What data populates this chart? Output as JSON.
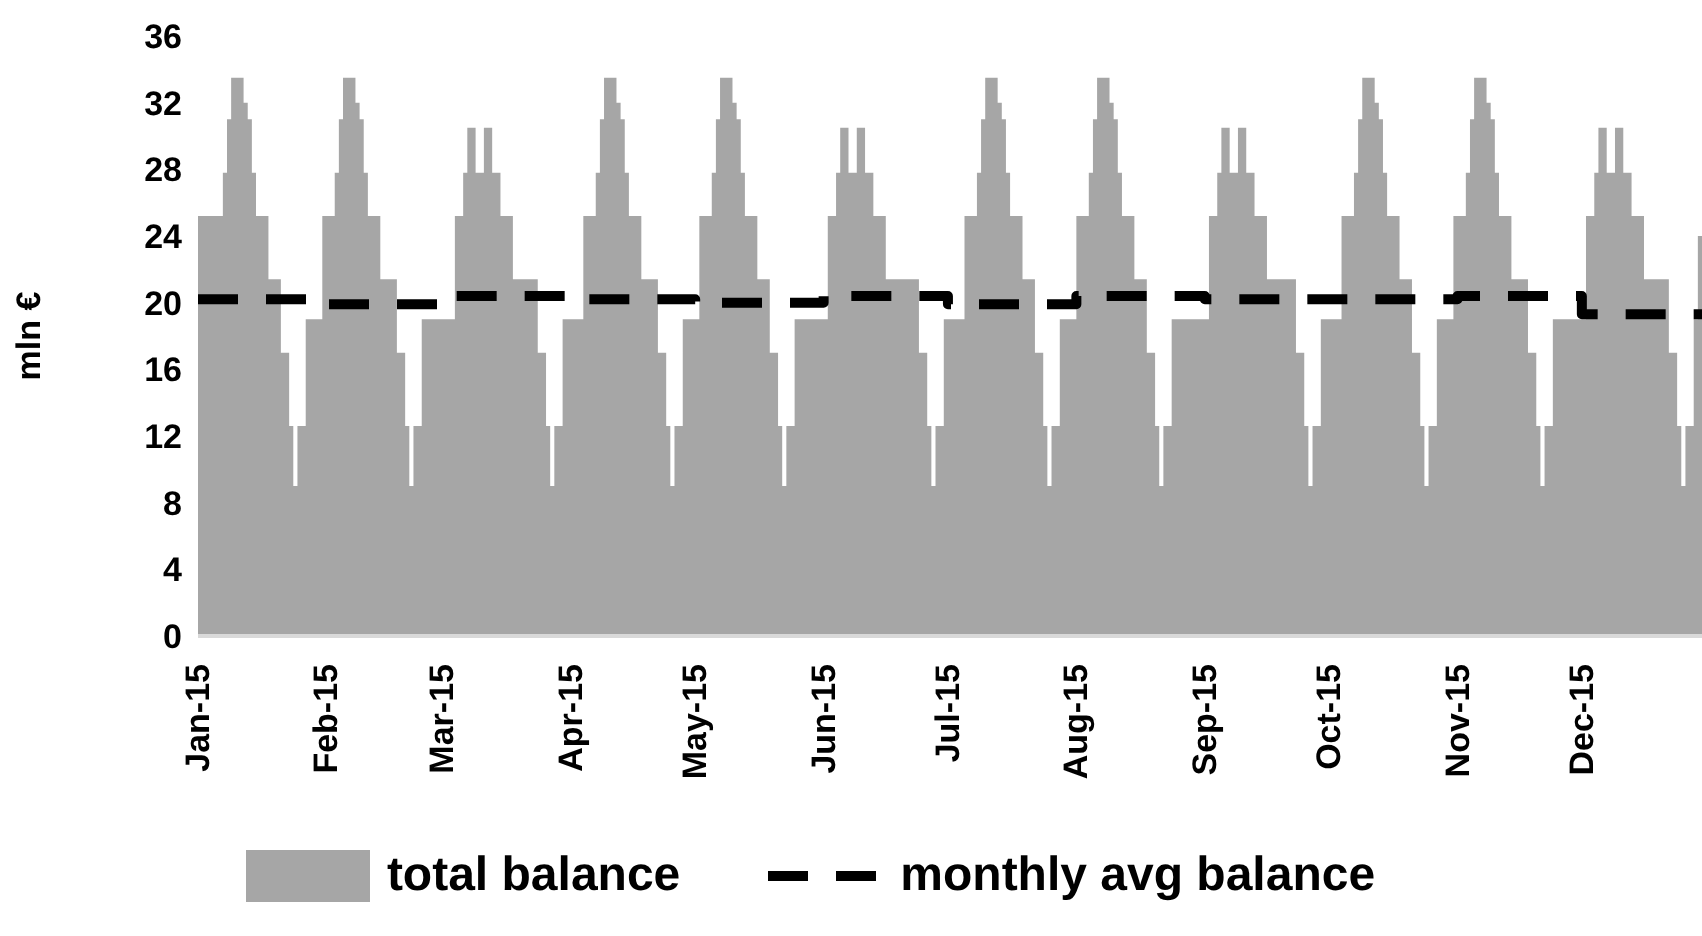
{
  "chart_data": {
    "type": "area",
    "ylabel": "mln €",
    "xlim": [
      "2015-01-01",
      "2015-12-30"
    ],
    "xticks": [
      {
        "value": "2015-01-01",
        "label": "Jan-15"
      },
      {
        "value": "2015-02-01",
        "label": "Feb-15"
      },
      {
        "value": "2015-03-01",
        "label": "Mar-15"
      },
      {
        "value": "2015-04-01",
        "label": "Apr-15"
      },
      {
        "value": "2015-05-01",
        "label": "May-15"
      },
      {
        "value": "2015-06-01",
        "label": "Jun-15"
      },
      {
        "value": "2015-07-01",
        "label": "Jul-15"
      },
      {
        "value": "2015-08-01",
        "label": "Aug-15"
      },
      {
        "value": "2015-09-01",
        "label": "Sep-15"
      },
      {
        "value": "2015-10-01",
        "label": "Oct-15"
      },
      {
        "value": "2015-11-01",
        "label": "Nov-15"
      },
      {
        "value": "2015-12-01",
        "label": "Dec-15"
      }
    ],
    "ylim": [
      0,
      36
    ],
    "yticks": [
      0,
      4,
      8,
      12,
      16,
      20,
      24,
      28,
      32,
      36
    ],
    "legend": "bottom",
    "series": [
      {
        "name": "total balance",
        "color": "#a6a6a6",
        "x": [
          "2015-01-01",
          "2015-01-07",
          "2015-01-08",
          "2015-01-09",
          "2015-01-12",
          "2015-01-13",
          "2015-01-14",
          "2015-01-15",
          "2015-01-18",
          "2015-01-21",
          "2015-01-23",
          "2015-01-24",
          "2015-01-25",
          "2015-01-27",
          "2015-01-31",
          "2015-02-03",
          "2015-02-04",
          "2015-02-05",
          "2015-02-08",
          "2015-02-09",
          "2015-02-10",
          "2015-02-11",
          "2015-02-14",
          "2015-02-18",
          "2015-02-20",
          "2015-02-21",
          "2015-02-22",
          "2015-02-24",
          "2015-03-04",
          "2015-03-06",
          "2015-03-07",
          "2015-03-09",
          "2015-03-11",
          "2015-03-13",
          "2015-03-15",
          "2015-03-18",
          "2015-03-24",
          "2015-03-26",
          "2015-03-27",
          "2015-03-28",
          "2015-03-30",
          "2015-04-04",
          "2015-04-07",
          "2015-04-08",
          "2015-04-09",
          "2015-04-12",
          "2015-04-13",
          "2015-04-14",
          "2015-04-15",
          "2015-04-18",
          "2015-04-22",
          "2015-04-24",
          "2015-04-25",
          "2015-04-26",
          "2015-04-28",
          "2015-05-02",
          "2015-05-05",
          "2015-05-06",
          "2015-05-07",
          "2015-05-10",
          "2015-05-11",
          "2015-05-12",
          "2015-05-13",
          "2015-05-16",
          "2015-05-19",
          "2015-05-21",
          "2015-05-22",
          "2015-05-23",
          "2015-05-25",
          "2015-06-02",
          "2015-06-04",
          "2015-06-05",
          "2015-06-07",
          "2015-06-09",
          "2015-06-11",
          "2015-06-13",
          "2015-06-16",
          "2015-06-24",
          "2015-06-26",
          "2015-06-27",
          "2015-06-28",
          "2015-06-30",
          "2015-07-05",
          "2015-07-08",
          "2015-07-09",
          "2015-07-10",
          "2015-07-13",
          "2015-07-14",
          "2015-07-15",
          "2015-07-16",
          "2015-07-19",
          "2015-07-22",
          "2015-07-24",
          "2015-07-25",
          "2015-07-26",
          "2015-07-28",
          "2015-08-01",
          "2015-08-04",
          "2015-08-05",
          "2015-08-06",
          "2015-08-09",
          "2015-08-10",
          "2015-08-11",
          "2015-08-12",
          "2015-08-15",
          "2015-08-18",
          "2015-08-20",
          "2015-08-21",
          "2015-08-22",
          "2015-08-24",
          "2015-09-02",
          "2015-09-04",
          "2015-09-05",
          "2015-09-07",
          "2015-09-09",
          "2015-09-11",
          "2015-09-13",
          "2015-09-16",
          "2015-09-23",
          "2015-09-25",
          "2015-09-26",
          "2015-09-27",
          "2015-09-29",
          "2015-10-04",
          "2015-10-07",
          "2015-10-08",
          "2015-10-09",
          "2015-10-12",
          "2015-10-13",
          "2015-10-14",
          "2015-10-15",
          "2015-10-18",
          "2015-10-21",
          "2015-10-23",
          "2015-10-24",
          "2015-10-25",
          "2015-10-27",
          "2015-10-31",
          "2015-11-03",
          "2015-11-04",
          "2015-11-05",
          "2015-11-08",
          "2015-11-09",
          "2015-11-10",
          "2015-11-11",
          "2015-11-14",
          "2015-11-18",
          "2015-11-20",
          "2015-11-21",
          "2015-11-22",
          "2015-11-24",
          "2015-12-02",
          "2015-12-04",
          "2015-12-05",
          "2015-12-07",
          "2015-12-09",
          "2015-12-11",
          "2015-12-13",
          "2015-12-16",
          "2015-12-22",
          "2015-12-24",
          "2015-12-25",
          "2015-12-26",
          "2015-12-28",
          "2015-12-29",
          "2015-12-30"
        ],
        "values": [
          25.2,
          27.8,
          31,
          33.5,
          32,
          31,
          27.8,
          25.2,
          21.4,
          17,
          12.6,
          9,
          12.6,
          19,
          25.2,
          27.8,
          31,
          33.5,
          32,
          31,
          27.8,
          25.2,
          21.4,
          17,
          12.6,
          9,
          12.6,
          19,
          25.2,
          27.8,
          30.5,
          27.8,
          30.5,
          27.8,
          25.2,
          21.4,
          17,
          12.6,
          9,
          12.6,
          19,
          25.2,
          27.8,
          31,
          33.5,
          32,
          31,
          27.8,
          25.2,
          21.4,
          17,
          12.6,
          9,
          12.6,
          19,
          25.2,
          27.8,
          31,
          33.5,
          32,
          31,
          27.8,
          25.2,
          21.4,
          17,
          12.6,
          9,
          12.6,
          19,
          25.2,
          27.8,
          30.5,
          27.8,
          30.5,
          27.8,
          25.2,
          21.4,
          17,
          12.6,
          9,
          12.6,
          19,
          25.2,
          27.8,
          31,
          33.5,
          32,
          31,
          27.8,
          25.2,
          21.4,
          17,
          12.6,
          9,
          12.6,
          19,
          25.2,
          27.8,
          31,
          33.5,
          32,
          31,
          27.8,
          25.2,
          21.4,
          17,
          12.6,
          9,
          12.6,
          19,
          25.2,
          27.8,
          30.5,
          27.8,
          30.5,
          27.8,
          25.2,
          21.4,
          17,
          12.6,
          9,
          12.6,
          19,
          25.2,
          27.8,
          31,
          33.5,
          32,
          31,
          27.8,
          25.2,
          21.4,
          17,
          12.6,
          9,
          12.6,
          19,
          25.2,
          27.8,
          31,
          33.5,
          32,
          31,
          27.8,
          25.2,
          21.4,
          17,
          12.6,
          9,
          12.6,
          19,
          25.2,
          27.8,
          30.5,
          27.8,
          30.5,
          27.8,
          25.2,
          21.4,
          17,
          12.6,
          9,
          12.6,
          19,
          24,
          24
        ]
      },
      {
        "name": "monthly avg balance",
        "type": "step",
        "color": "#000000",
        "line_style": "dashed",
        "x": [
          "2015-01-01",
          "2015-02-01",
          "2015-03-01",
          "2015-04-01",
          "2015-05-01",
          "2015-06-01",
          "2015-07-01",
          "2015-08-01",
          "2015-09-01",
          "2015-10-01",
          "2015-11-01",
          "2015-12-01",
          "2015-12-30"
        ],
        "values": [
          20.2,
          19.9,
          20.4,
          20.2,
          20.0,
          20.4,
          19.9,
          20.4,
          20.2,
          20.2,
          20.4,
          19.3,
          19.3
        ]
      }
    ]
  }
}
